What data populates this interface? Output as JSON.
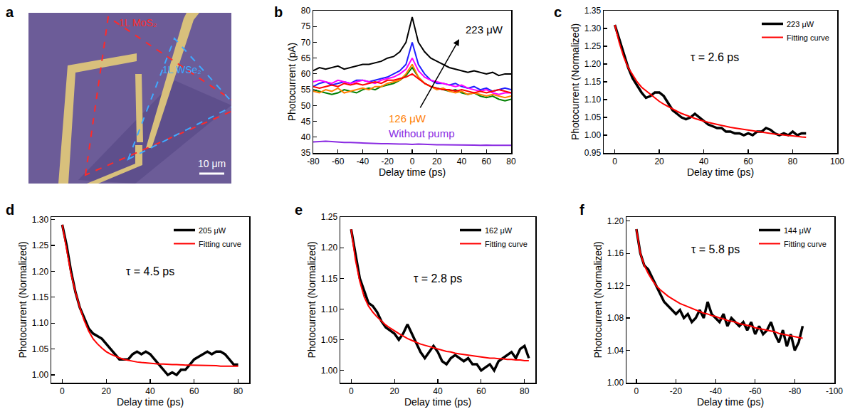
{
  "chart_data": [
    {
      "panel": "a",
      "type": "micrograph",
      "annotations": [
        {
          "text": "1L MoS₂",
          "color": "#ff2a2a"
        },
        {
          "text": "1L WSe₂",
          "color": "#3fa9ff"
        }
      ],
      "scale_bar": "10 μm"
    },
    {
      "panel": "b",
      "type": "line",
      "x_label": "Delay time (ps)",
      "y_label": "Photocurrent (pA)",
      "xlim": [
        -80,
        80
      ],
      "ylim": [
        35,
        80
      ],
      "xticks": [
        -80,
        -60,
        -40,
        -20,
        0,
        20,
        40,
        60,
        80
      ],
      "yticks": [
        35,
        40,
        45,
        50,
        55,
        60,
        65,
        70,
        75,
        80
      ],
      "x": [
        -80,
        -75,
        -70,
        -65,
        -60,
        -55,
        -50,
        -45,
        -40,
        -35,
        -30,
        -25,
        -20,
        -15,
        -10,
        -5,
        0,
        5,
        10,
        15,
        20,
        25,
        30,
        35,
        40,
        45,
        50,
        55,
        60,
        65,
        70,
        75,
        80
      ],
      "series": [
        {
          "color": "#000000",
          "values": [
            61,
            62,
            61.5,
            62,
            62.5,
            61.5,
            62,
            62.5,
            63,
            63,
            63.5,
            64,
            65,
            65.5,
            67,
            70,
            78,
            70,
            67,
            65,
            64,
            63,
            62,
            61.5,
            61,
            60.5,
            61,
            60.5,
            60,
            60.5,
            59.5,
            60,
            60
          ]
        },
        {
          "color": "#1f1fff",
          "values": [
            56,
            57,
            57.5,
            56.5,
            57,
            57.5,
            57,
            58,
            58,
            57.5,
            58,
            58.5,
            59,
            60,
            61,
            63,
            70,
            63,
            60,
            58,
            57,
            57,
            56.5,
            57,
            56,
            55.5,
            56,
            55,
            55.5,
            54.5,
            55,
            55.5,
            55
          ]
        },
        {
          "color": "#ff00ff",
          "values": [
            57.5,
            58,
            57.5,
            57,
            58,
            57.5,
            57,
            57.5,
            58,
            57.5,
            57,
            58,
            58.5,
            59,
            60,
            61.5,
            65,
            61,
            59,
            58,
            57.5,
            57,
            56.5,
            56,
            56.5,
            55.5,
            55,
            54.5,
            55,
            54,
            53.5,
            54,
            54
          ]
        },
        {
          "color": "#008000",
          "values": [
            55,
            54.5,
            54,
            53.5,
            54,
            55,
            54.5,
            54,
            55,
            55.5,
            55,
            56,
            56.5,
            57,
            58,
            59.5,
            62,
            59,
            57,
            56,
            55.5,
            55,
            54.5,
            55,
            54,
            53.5,
            54,
            53,
            52.5,
            53,
            52,
            51.5,
            52
          ]
        },
        {
          "color": "#ff8000",
          "values": [
            54.5,
            54,
            55,
            54.5,
            55.5,
            54,
            54.5,
            55,
            55.5,
            55,
            56,
            56,
            57,
            57.5,
            58,
            60,
            63,
            59,
            57,
            56,
            55,
            55.5,
            54.5,
            54,
            54.5,
            53.5,
            54,
            53.5,
            53,
            53.5,
            53,
            52.5,
            53
          ]
        },
        {
          "color": "#ff0000",
          "values": [
            56,
            55.5,
            56,
            56.5,
            56,
            57,
            56.5,
            57,
            56.5,
            57,
            57.5,
            57,
            58,
            58,
            58.5,
            59,
            60,
            58.5,
            57,
            56,
            55.5,
            55,
            55,
            54.5,
            55,
            54.5,
            54,
            54.5,
            54,
            54.5,
            55,
            54.5,
            54
          ]
        },
        {
          "color": "#8a2be2",
          "values": [
            38.5,
            38.6,
            38.7,
            38.6,
            38.4,
            38.3,
            38.3,
            38.2,
            38.1,
            38.0,
            38.0,
            37.9,
            37.9,
            37.8,
            37.8,
            37.8,
            37.7,
            37.8,
            37.7,
            37.7,
            37.6,
            37.6,
            37.6,
            37.5,
            37.6,
            37.5,
            37.5,
            37.4,
            37.5,
            37.4,
            37.4,
            37.4,
            37.4
          ]
        }
      ],
      "annotations": [
        {
          "text": "223 μW",
          "color": "#000000"
        },
        {
          "text": "126 μW",
          "color": "#ff8000"
        },
        {
          "text": "Without pump",
          "color": "#8a2be2"
        }
      ]
    },
    {
      "panel": "c",
      "type": "line",
      "x_label": "Delay time (ps)",
      "y_label": "Photocurrent (Normalized)",
      "xlim": [
        -5,
        100
      ],
      "ylim": [
        0.95,
        1.35
      ],
      "xticks": [
        0,
        20,
        40,
        60,
        80,
        100
      ],
      "yticks": [
        0.95,
        {
          "value": 1.0,
          "label": "1.00"
        },
        1.05,
        {
          "value": 1.1,
          "label": "1.10"
        },
        1.15,
        {
          "value": 1.2,
          "label": "1.20"
        },
        1.25,
        {
          "value": 1.3,
          "label": "1.30"
        },
        1.35
      ],
      "x": [
        0,
        2,
        4,
        6,
        8,
        10,
        12,
        14,
        16,
        18,
        20,
        22,
        24,
        26,
        28,
        30,
        32,
        34,
        36,
        38,
        40,
        42,
        44,
        46,
        48,
        50,
        52,
        54,
        56,
        58,
        60,
        62,
        64,
        66,
        68,
        70,
        72,
        74,
        76,
        78,
        80,
        82,
        84,
        86
      ],
      "series": [
        {
          "name": "223 μW",
          "color": "#000000",
          "values": [
            1.31,
            1.27,
            1.23,
            1.19,
            1.16,
            1.14,
            1.12,
            1.105,
            1.11,
            1.12,
            1.12,
            1.11,
            1.09,
            1.07,
            1.06,
            1.05,
            1.045,
            1.05,
            1.06,
            1.05,
            1.04,
            1.03,
            1.025,
            1.02,
            1.02,
            1.01,
            1.01,
            1.005,
            1.005,
            1.0,
            1.005,
            1.0,
            1.01,
            1.01,
            1.02,
            1.015,
            1.005,
            1.0,
            1.005,
            1.0,
            1.01,
            1.0,
            1.005,
            1.005
          ]
        },
        {
          "name": "Fitting curve",
          "color": "#ff0000",
          "values": [
            1.31,
            1.26,
            1.22,
            1.19,
            1.17,
            1.15,
            1.135,
            1.125,
            1.115,
            1.105,
            1.095,
            1.087,
            1.08,
            1.073,
            1.067,
            1.061,
            1.056,
            1.051,
            1.047,
            1.043,
            1.039,
            1.036,
            1.033,
            1.03,
            1.027,
            1.024,
            1.022,
            1.02,
            1.018,
            1.016,
            1.014,
            1.012,
            1.01,
            1.008,
            1.006,
            1.005,
            1.003,
            1.002,
            1.0,
            0.999,
            0.998,
            0.996,
            0.995,
            0.994
          ]
        }
      ],
      "legend": "top right",
      "annotations": [
        {
          "text": "τ = 2.6 ps"
        }
      ]
    },
    {
      "panel": "d",
      "type": "line",
      "x_label": "Delay time (ps)",
      "y_label": "Photocurrent (Normalized)",
      "xlim": [
        -5,
        85
      ],
      "ylim": [
        0.985,
        1.305
      ],
      "xticks": [
        0,
        20,
        40,
        60,
        80
      ],
      "yticks": [
        {
          "value": 1.0,
          "label": "1.00"
        },
        1.05,
        {
          "value": 1.1,
          "label": "1.10"
        },
        1.15,
        {
          "value": 1.2,
          "label": "1.20"
        },
        1.25,
        {
          "value": 1.3,
          "label": "1.30"
        }
      ],
      "x": [
        0,
        2,
        4,
        6,
        8,
        10,
        12,
        14,
        16,
        18,
        20,
        22,
        24,
        26,
        28,
        30,
        32,
        34,
        36,
        38,
        40,
        42,
        44,
        46,
        48,
        50,
        52,
        54,
        56,
        58,
        60,
        62,
        64,
        66,
        68,
        70,
        72,
        74,
        76,
        78,
        80
      ],
      "series": [
        {
          "name": "205 μW",
          "color": "#000000",
          "values": [
            1.29,
            1.25,
            1.2,
            1.16,
            1.13,
            1.11,
            1.09,
            1.08,
            1.075,
            1.07,
            1.06,
            1.05,
            1.04,
            1.03,
            1.03,
            1.03,
            1.04,
            1.045,
            1.04,
            1.045,
            1.04,
            1.03,
            1.02,
            1.01,
            1.0,
            1.005,
            1.0,
            1.01,
            1.01,
            1.02,
            1.03,
            1.035,
            1.04,
            1.045,
            1.04,
            1.045,
            1.045,
            1.04,
            1.03,
            1.02,
            1.02
          ]
        },
        {
          "name": "Fitting curve",
          "color": "#ff0000",
          "values": [
            1.29,
            1.24,
            1.195,
            1.16,
            1.13,
            1.105,
            1.085,
            1.07,
            1.06,
            1.052,
            1.045,
            1.04,
            1.036,
            1.033,
            1.03,
            1.028,
            1.027,
            1.025,
            1.024,
            1.023,
            1.022,
            1.022,
            1.021,
            1.021,
            1.02,
            1.02,
            1.02,
            1.019,
            1.019,
            1.019,
            1.019,
            1.018,
            1.018,
            1.018,
            1.018,
            1.018,
            1.017,
            1.017,
            1.017,
            1.017,
            1.017
          ]
        }
      ],
      "legend": "top right",
      "annotations": [
        {
          "text": "τ = 4.5 ps"
        }
      ]
    },
    {
      "panel": "e",
      "type": "line",
      "x_label": "Delay time (ps)",
      "y_label": "Photocurrent (Normalized)",
      "xlim": [
        -5,
        85
      ],
      "ylim": [
        0.98,
        1.25
      ],
      "xticks": [
        0,
        20,
        40,
        60,
        80
      ],
      "yticks": [
        {
          "value": 1.0,
          "label": "1.00"
        },
        1.05,
        {
          "value": 1.1,
          "label": "1.10"
        },
        1.15,
        {
          "value": 1.2,
          "label": "1.20"
        },
        1.25
      ],
      "x": [
        0,
        2,
        4,
        6,
        8,
        10,
        12,
        14,
        16,
        18,
        20,
        22,
        24,
        26,
        28,
        30,
        32,
        34,
        36,
        38,
        40,
        42,
        44,
        46,
        48,
        50,
        52,
        54,
        56,
        58,
        60,
        62,
        64,
        66,
        68,
        70,
        72,
        74,
        76,
        78,
        80,
        82
      ],
      "series": [
        {
          "name": "162 μW",
          "color": "#000000",
          "values": [
            1.23,
            1.19,
            1.15,
            1.13,
            1.11,
            1.105,
            1.095,
            1.08,
            1.07,
            1.065,
            1.06,
            1.05,
            1.06,
            1.075,
            1.06,
            1.045,
            1.03,
            1.02,
            1.03,
            1.04,
            1.03,
            1.015,
            1.01,
            1.02,
            1.025,
            1.02,
            1.015,
            1.02,
            1.01,
            1.01,
            1.0,
            1.005,
            1.01,
            1.0,
            1.015,
            1.02,
            1.025,
            1.03,
            1.02,
            1.035,
            1.04,
            1.02
          ]
        },
        {
          "name": "Fitting curve",
          "color": "#ff0000",
          "values": [
            1.23,
            1.18,
            1.145,
            1.12,
            1.105,
            1.095,
            1.087,
            1.08,
            1.074,
            1.069,
            1.064,
            1.06,
            1.056,
            1.052,
            1.049,
            1.046,
            1.043,
            1.041,
            1.039,
            1.037,
            1.035,
            1.033,
            1.031,
            1.03,
            1.028,
            1.027,
            1.026,
            1.025,
            1.024,
            1.023,
            1.022,
            1.021,
            1.02,
            1.02,
            1.019,
            1.019,
            1.018,
            1.018,
            1.017,
            1.017,
            1.016,
            1.016
          ]
        }
      ],
      "legend": "top right",
      "annotations": [
        {
          "text": "τ = 2.8 ps"
        }
      ]
    },
    {
      "panel": "f",
      "type": "line",
      "x_label": "Delay time (ps)",
      "y_label": "Photocurrent (Normalized)",
      "xlim": [
        5,
        -100
      ],
      "ylim": [
        1.0,
        1.205
      ],
      "xticks": [
        0,
        -20,
        -40,
        -60,
        -80,
        -100
      ],
      "yticks": [
        {
          "value": 1.0,
          "label": "1.00"
        },
        1.04,
        1.08,
        1.12,
        1.16,
        {
          "value": 1.2,
          "label": "1.20"
        }
      ],
      "x": [
        0,
        -2,
        -4,
        -6,
        -8,
        -10,
        -12,
        -14,
        -16,
        -18,
        -20,
        -22,
        -24,
        -26,
        -28,
        -30,
        -32,
        -34,
        -36,
        -38,
        -40,
        -42,
        -44,
        -46,
        -48,
        -50,
        -52,
        -54,
        -56,
        -58,
        -60,
        -62,
        -64,
        -66,
        -68,
        -70,
        -72,
        -74,
        -76,
        -78,
        -80,
        -82,
        -84
      ],
      "series": [
        {
          "name": "144 μW",
          "color": "#000000",
          "values": [
            1.19,
            1.16,
            1.145,
            1.14,
            1.13,
            1.12,
            1.11,
            1.1,
            1.095,
            1.09,
            1.085,
            1.09,
            1.08,
            1.085,
            1.075,
            1.08,
            1.09,
            1.08,
            1.1,
            1.085,
            1.08,
            1.075,
            1.085,
            1.07,
            1.08,
            1.075,
            1.07,
            1.075,
            1.065,
            1.075,
            1.06,
            1.07,
            1.06,
            1.065,
            1.075,
            1.06,
            1.05,
            1.065,
            1.045,
            1.06,
            1.04,
            1.05,
            1.07
          ]
        },
        {
          "name": "Fitting curve",
          "color": "#ff0000",
          "values": [
            1.19,
            1.16,
            1.145,
            1.135,
            1.127,
            1.12,
            1.115,
            1.111,
            1.107,
            1.104,
            1.101,
            1.098,
            1.096,
            1.094,
            1.092,
            1.09,
            1.088,
            1.086,
            1.085,
            1.083,
            1.082,
            1.08,
            1.079,
            1.077,
            1.076,
            1.075,
            1.073,
            1.072,
            1.071,
            1.07,
            1.068,
            1.067,
            1.066,
            1.065,
            1.064,
            1.063,
            1.061,
            1.06,
            1.059,
            1.058,
            1.057,
            1.056,
            1.055
          ]
        }
      ],
      "legend": "top right",
      "annotations": [
        {
          "text": "τ = 5.8 ps"
        }
      ]
    }
  ]
}
